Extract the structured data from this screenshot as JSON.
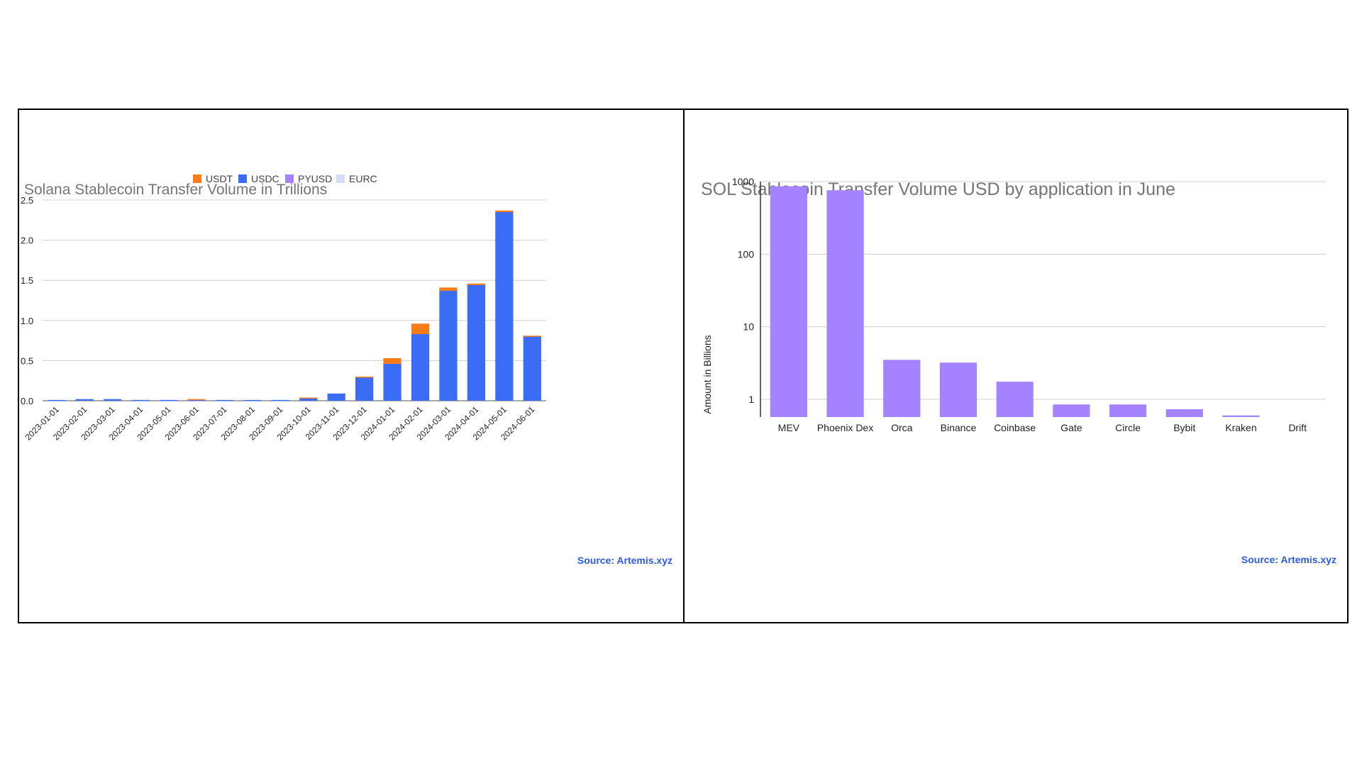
{
  "chart_data": [
    {
      "type": "bar",
      "stacked": true,
      "title": "Solana Stablecoin Transfer Volume in Trillions",
      "xlabel": "",
      "ylabel": "",
      "ylim": [
        0,
        2.5
      ],
      "yticks": [
        0.0,
        0.5,
        1.0,
        1.5,
        2.0,
        2.5
      ],
      "ytick_labels": [
        "0.0",
        "0.5",
        "1.0",
        "1.5",
        "2.0",
        "2.5"
      ],
      "grid": true,
      "legend_position": "top",
      "categories": [
        "2023-01-01",
        "2023-02-01",
        "2023-03-01",
        "2023-04-01",
        "2023-05-01",
        "2023-06-01",
        "2023-07-01",
        "2023-08-01",
        "2023-09-01",
        "2023-10-01",
        "2023-11-01",
        "2023-12-01",
        "2024-01-01",
        "2024-02-01",
        "2024-03-01",
        "2024-04-01",
        "2024-05-01",
        "2024-06-01"
      ],
      "series": [
        {
          "name": "USDC",
          "color": "#3b6cf6",
          "values": [
            0.01,
            0.02,
            0.02,
            0.01,
            0.01,
            0.01,
            0.01,
            0.01,
            0.01,
            0.03,
            0.09,
            0.29,
            0.46,
            0.83,
            1.37,
            1.44,
            2.35,
            0.8
          ]
        },
        {
          "name": "USDT",
          "color": "#fa7b17",
          "values": [
            0.0,
            0.0,
            0.0,
            0.0,
            0.0,
            0.01,
            0.0,
            0.0,
            0.0,
            0.01,
            0.0,
            0.01,
            0.07,
            0.13,
            0.04,
            0.02,
            0.02,
            0.01
          ]
        },
        {
          "name": "PYUSD",
          "color": "#a582ff",
          "values": [
            0,
            0,
            0,
            0,
            0,
            0,
            0,
            0,
            0,
            0,
            0,
            0,
            0,
            0,
            0,
            0,
            0,
            0
          ]
        },
        {
          "name": "EURC",
          "color": "#d7dcfb",
          "values": [
            0,
            0,
            0,
            0,
            0,
            0,
            0,
            0,
            0,
            0,
            0,
            0,
            0,
            0,
            0,
            0,
            0,
            0
          ]
        }
      ],
      "legend_order": [
        "USDT",
        "USDC",
        "PYUSD",
        "EURC"
      ],
      "source": "Source: Artemis.xyz"
    },
    {
      "type": "bar",
      "yscale": "log",
      "title": "SOL Stablecoin Transfer Volume USD by application in June",
      "xlabel": "",
      "ylabel": "Amount in Billions",
      "ylim": [
        0.57,
        1000
      ],
      "yticks": [
        1,
        10,
        100,
        1000
      ],
      "ytick_labels": [
        "1",
        "10",
        "100",
        "1000"
      ],
      "grid": true,
      "bar_color": "#a582ff",
      "categories": [
        "MEV",
        "Phoenix Dex",
        "Orca",
        "Binance",
        "Coinbase",
        "Gate",
        "Circle",
        "Bybit",
        "Kraken",
        "Drift"
      ],
      "values": [
        860,
        760,
        3.5,
        3.2,
        1.75,
        0.85,
        0.85,
        0.73,
        0.6,
        0.57
      ],
      "source": "Source: Artemis.xyz"
    }
  ]
}
